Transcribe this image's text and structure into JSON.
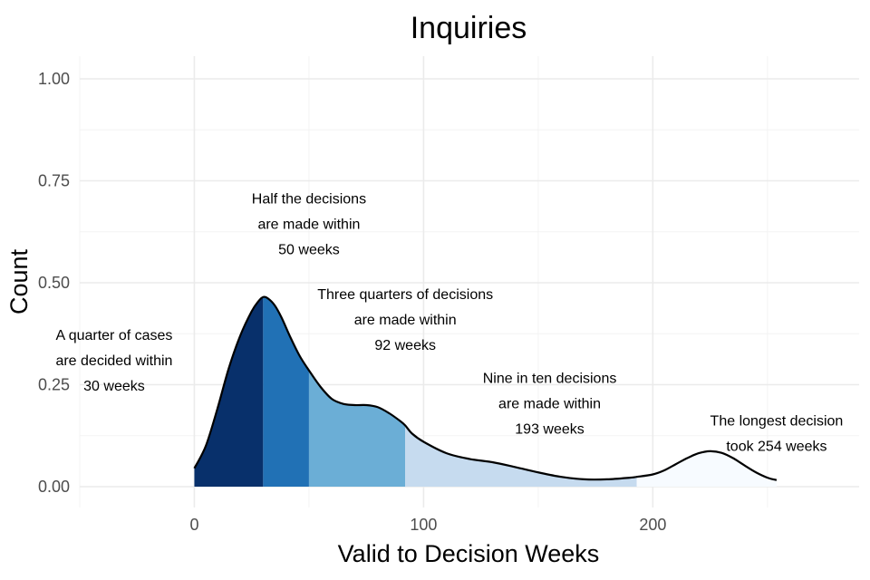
{
  "chart_data": {
    "type": "area",
    "title": "Inquiries",
    "xlabel": "Valid to Decision Weeks",
    "ylabel": "Count",
    "xlim": [
      -50,
      290
    ],
    "ylim": [
      0,
      1.0
    ],
    "x_ticks": [
      0,
      100,
      200
    ],
    "y_ticks": [
      0.0,
      0.25,
      0.5,
      0.75,
      1.0
    ],
    "x_tick_labels": [
      "0",
      "100",
      "200"
    ],
    "y_tick_labels": [
      "0.00",
      "0.25",
      "0.50",
      "0.75",
      "1.00"
    ],
    "grid": true,
    "density_curve": {
      "x": [
        0,
        5,
        10,
        15,
        20,
        25,
        28,
        30,
        32,
        35,
        38,
        42,
        46,
        50,
        55,
        60,
        65,
        70,
        75,
        80,
        85,
        90,
        92,
        95,
        100,
        110,
        120,
        130,
        140,
        150,
        160,
        170,
        180,
        190,
        193,
        200,
        205,
        210,
        215,
        220,
        225,
        230,
        235,
        240,
        245,
        250,
        254
      ],
      "y": [
        0.045,
        0.1,
        0.19,
        0.29,
        0.37,
        0.43,
        0.455,
        0.465,
        0.462,
        0.445,
        0.415,
        0.365,
        0.32,
        0.285,
        0.245,
        0.215,
        0.203,
        0.2,
        0.2,
        0.195,
        0.18,
        0.16,
        0.15,
        0.13,
        0.11,
        0.082,
        0.068,
        0.06,
        0.048,
        0.035,
        0.024,
        0.018,
        0.018,
        0.022,
        0.024,
        0.03,
        0.04,
        0.055,
        0.07,
        0.082,
        0.087,
        0.083,
        0.07,
        0.052,
        0.035,
        0.022,
        0.016
      ]
    },
    "quantile_segments": [
      {
        "from": 0,
        "to": 30,
        "color": "#08306b"
      },
      {
        "from": 30,
        "to": 50,
        "color": "#2171b5"
      },
      {
        "from": 50,
        "to": 92,
        "color": "#6baed6"
      },
      {
        "from": 92,
        "to": 193,
        "color": "#c6dbef"
      },
      {
        "from": 193,
        "to": 254,
        "color": "#f7fbff"
      }
    ],
    "annotations": [
      {
        "x": -35,
        "y": 0.36,
        "lines": [
          "A quarter of cases",
          "are decided within",
          "30 weeks"
        ]
      },
      {
        "x": 50,
        "y": 0.695,
        "lines": [
          "Half the decisions",
          "are made within",
          "50 weeks"
        ]
      },
      {
        "x": 92,
        "y": 0.46,
        "lines": [
          "Three quarters of decisions",
          "are made within",
          "92 weeks"
        ]
      },
      {
        "x": 155,
        "y": 0.255,
        "lines": [
          "Nine in ten decisions",
          "are made within",
          "193 weeks"
        ]
      },
      {
        "x": 254,
        "y": 0.15,
        "lines": [
          "The longest decision",
          "took 254 weeks"
        ]
      }
    ]
  }
}
